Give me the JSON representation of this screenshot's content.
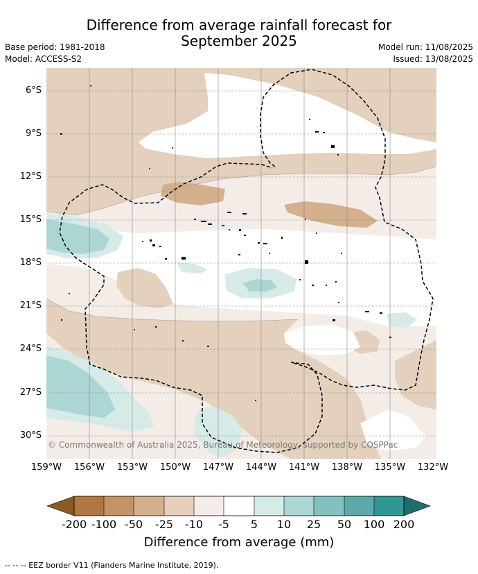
{
  "title": {
    "line1": "Difference from average rainfall forecast for",
    "line2": "September 2025"
  },
  "meta": {
    "base_period": "Base period: 1981-2018",
    "model": "Model: ACCESS-S2",
    "model_run": "Model run: 11/08/2025",
    "issued": "Issued: 13/08/2025"
  },
  "map": {
    "latitudes": [
      "6°S",
      "9°S",
      "12°S",
      "15°S",
      "18°S",
      "21°S",
      "24°S",
      "27°S",
      "30°S"
    ],
    "longitudes": [
      "159°W",
      "156°W",
      "153°W",
      "150°W",
      "147°W",
      "144°W",
      "141°W",
      "138°W",
      "135°W",
      "132°W"
    ],
    "copyright": "© Commonwealth of Australia 2025, Bureau of Meteorology, supported by COSPPac"
  },
  "colorbar": {
    "labels": [
      "-200",
      "-100",
      "-50",
      "-25",
      "-10",
      "-5",
      "5",
      "10",
      "25",
      "50",
      "100",
      "200"
    ],
    "colors": [
      "#8c5a26",
      "#b07840",
      "#c49467",
      "#d4b08e",
      "#e3d0bd",
      "#f4ece6",
      "#ffffff",
      "#d6eae8",
      "#acd6d4",
      "#83c1be",
      "#5ba9a8",
      "#2f9794",
      "#1e6f6c"
    ],
    "title": "Difference from average (mm)"
  },
  "footer": "--  --  -- EEZ border V11 (Flanders Marine Institute, 2019)."
}
